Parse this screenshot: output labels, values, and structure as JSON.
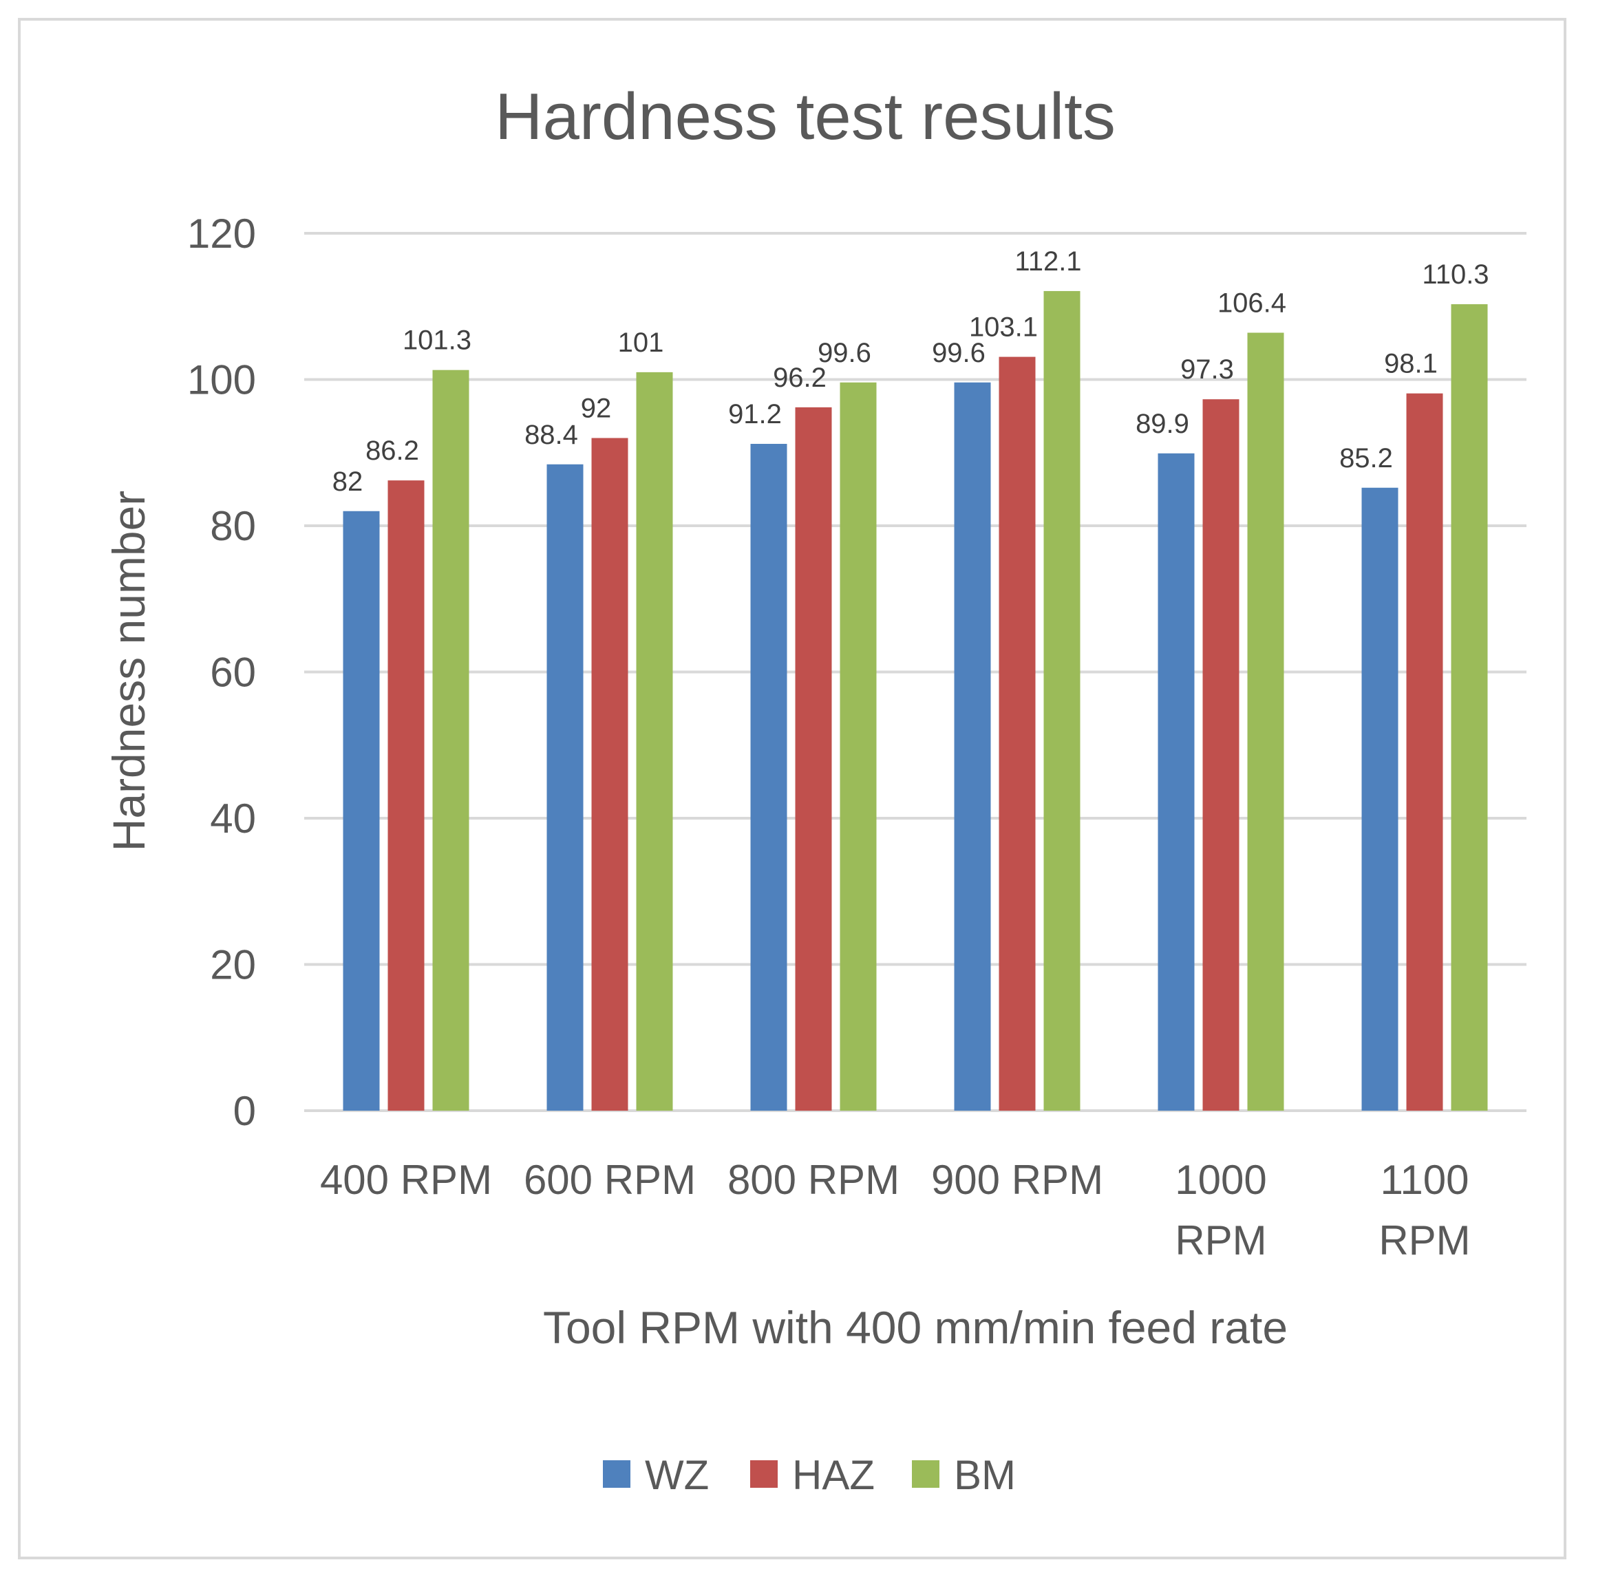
{
  "chart_data": {
    "type": "bar",
    "title": "Hardness test results",
    "xlabel": "Tool RPM with 400 mm/min feed rate",
    "ylabel": "Hardness number",
    "ylim": [
      0,
      120
    ],
    "yticks": [
      0,
      20,
      40,
      60,
      80,
      100,
      120
    ],
    "grid": true,
    "legend_position": "bottom",
    "categories": [
      [
        "400 RPM"
      ],
      [
        "600 RPM"
      ],
      [
        "800 RPM"
      ],
      [
        "900 RPM"
      ],
      [
        "1000",
        "RPM"
      ],
      [
        "1100",
        "RPM"
      ]
    ],
    "series": [
      {
        "name": "WZ",
        "color": "#4f81bd",
        "values": [
          82,
          88.4,
          91.2,
          99.6,
          89.9,
          85.2
        ]
      },
      {
        "name": "HAZ",
        "color": "#c0504d",
        "values": [
          86.2,
          92,
          96.2,
          103.1,
          97.3,
          98.1
        ]
      },
      {
        "name": "BM",
        "color": "#9bbb59",
        "values": [
          101.3,
          101,
          99.6,
          112.1,
          106.4,
          110.3
        ]
      }
    ]
  }
}
